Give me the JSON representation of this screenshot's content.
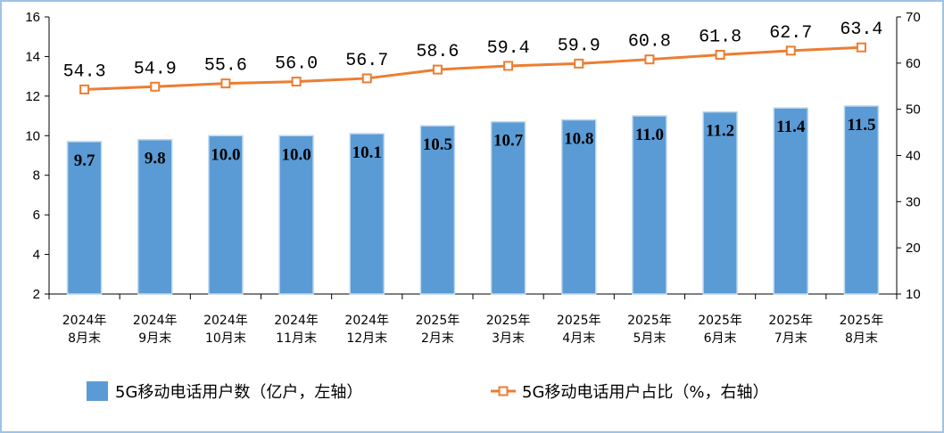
{
  "chart_data": {
    "type": "bar",
    "categories": [
      [
        "2024年",
        "8月末"
      ],
      [
        "2024年",
        "9月末"
      ],
      [
        "2024年",
        "10月末"
      ],
      [
        "2024年",
        "11月末"
      ],
      [
        "2024年",
        "12月末"
      ],
      [
        "2025年",
        "2月末"
      ],
      [
        "2025年",
        "3月末"
      ],
      [
        "2025年",
        "4月末"
      ],
      [
        "2025年",
        "5月末"
      ],
      [
        "2025年",
        "6月末"
      ],
      [
        "2025年",
        "7月末"
      ],
      [
        "2025年",
        "8月末"
      ]
    ],
    "series": [
      {
        "name": "5G移动电话用户数（亿户，左轴）",
        "type": "bar",
        "axis": "left",
        "color": "#5B9BD5",
        "values": [
          9.7,
          9.8,
          10.0,
          10.0,
          10.1,
          10.5,
          10.7,
          10.8,
          11.0,
          11.2,
          11.4,
          11.5
        ],
        "labels": [
          "9.7",
          "9.8",
          "10.0",
          "10.0",
          "10.1",
          "10.5",
          "10.7",
          "10.8",
          "11.0",
          "11.2",
          "11.4",
          "11.5"
        ]
      },
      {
        "name": "5G移动电话用户占比（%，右轴）",
        "type": "line",
        "axis": "right",
        "color": "#ED7D31",
        "values": [
          54.3,
          54.9,
          55.6,
          56.0,
          56.7,
          58.6,
          59.4,
          59.9,
          60.8,
          61.8,
          62.7,
          63.4
        ],
        "labels": [
          "54.3",
          "54.9",
          "55.6",
          "56.0",
          "56.7",
          "58.6",
          "59.4",
          "59.9",
          "60.8",
          "61.8",
          "62.7",
          "63.4"
        ]
      }
    ],
    "y_left": {
      "ylim": [
        2,
        16
      ],
      "ticks": [
        "2",
        "4",
        "6",
        "8",
        "10",
        "12",
        "14",
        "16"
      ]
    },
    "y_right": {
      "ylim": [
        10,
        70
      ],
      "ticks": [
        "10",
        "20",
        "30",
        "40",
        "50",
        "60",
        "70"
      ]
    },
    "grid": false,
    "legend": "bottom"
  }
}
